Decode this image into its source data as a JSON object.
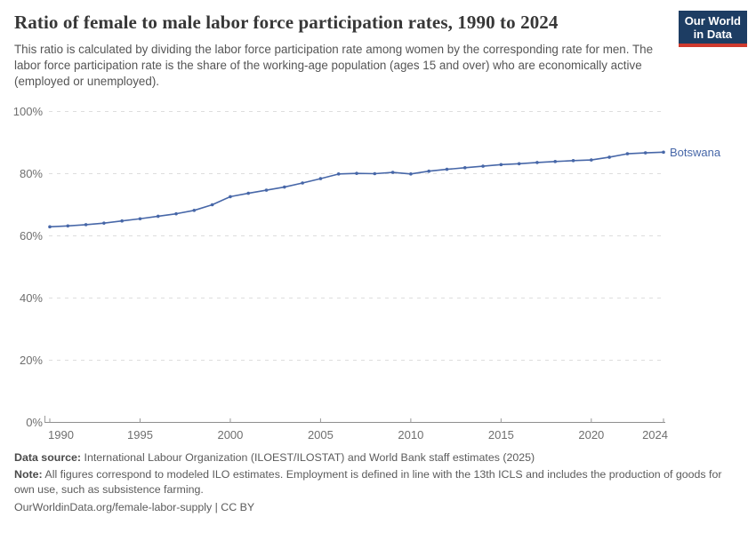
{
  "header": {
    "title": "Ratio of female to male labor force participation rates, 1990 to 2024",
    "subtitle": "This ratio is calculated by dividing the labor force participation rate among women by the corresponding rate for men. The labor force participation rate is the share of the working-age population (ages 15 and over) who are economically active (employed or unemployed).",
    "logo": {
      "line1": "Our World",
      "line2": "in Data",
      "bg_color": "#1d3d63",
      "accent_color": "#cf3a2e"
    }
  },
  "chart_data": {
    "type": "line",
    "title": "Ratio of female to male labor force participation rates, 1990 to 2024",
    "xlabel": "",
    "ylabel": "",
    "xlim": [
      1990,
      2024
    ],
    "ylim": [
      0,
      100
    ],
    "grid": "dashed horizontal",
    "legend_position": "end-of-line label",
    "x_ticks": [
      1990,
      1995,
      2000,
      2005,
      2010,
      2015,
      2020,
      2024
    ],
    "y_ticks": [
      0,
      20,
      40,
      60,
      80,
      100
    ],
    "y_tick_suffix": "%",
    "x": [
      1990,
      1991,
      1992,
      1993,
      1994,
      1995,
      1996,
      1997,
      1998,
      1999,
      2000,
      2001,
      2002,
      2003,
      2004,
      2005,
      2006,
      2007,
      2008,
      2009,
      2010,
      2011,
      2012,
      2013,
      2014,
      2015,
      2016,
      2017,
      2018,
      2019,
      2020,
      2021,
      2022,
      2023,
      2024
    ],
    "series": [
      {
        "name": "Botswana",
        "color": "#4767a8",
        "values": [
          62.9,
          63.2,
          63.6,
          64.1,
          64.8,
          65.5,
          66.3,
          67.1,
          68.2,
          70.0,
          72.6,
          73.7,
          74.7,
          75.7,
          77.0,
          78.4,
          79.9,
          80.1,
          80.0,
          80.4,
          79.9,
          80.8,
          81.4,
          81.9,
          82.4,
          82.9,
          83.2,
          83.6,
          83.9,
          84.2,
          84.4,
          85.3,
          86.4,
          86.7,
          86.9
        ]
      }
    ],
    "colors": {
      "gridline": "#dddddd",
      "axis_line": "#8f8f8f",
      "tick_label": "#6f6f6f"
    }
  },
  "footer": {
    "data_source_label": "Data source:",
    "data_source_text": " International Labour Organization (ILOEST/ILOSTAT) and World Bank staff estimates (2025)",
    "note_label": "Note:",
    "note_text": " All figures correspond to modeled ILO estimates. Employment is defined in line with the 13th ICLS and includes the production of goods for own use, such as subsistence farming.",
    "link": "OurWorldinData.org/female-labor-supply | CC BY"
  }
}
